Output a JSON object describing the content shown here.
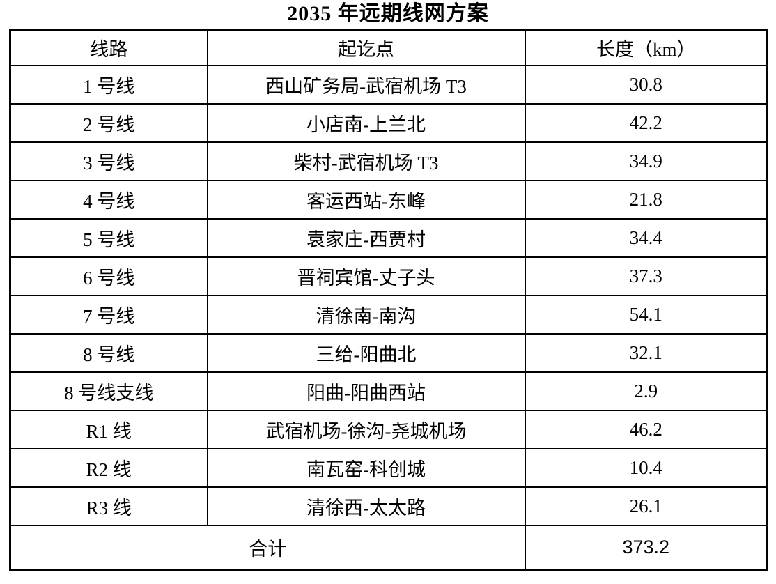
{
  "title": "2035 年远期线网方案",
  "table": {
    "headers": {
      "line": "线路",
      "route": "起讫点",
      "length": "长度（km）"
    },
    "rows": [
      {
        "line": "1 号线",
        "route": "西山矿务局-武宿机场 T3",
        "length": "30.8"
      },
      {
        "line": "2 号线",
        "route": "小店南-上兰北",
        "length": "42.2"
      },
      {
        "line": "3 号线",
        "route": "柴村-武宿机场 T3",
        "length": "34.9"
      },
      {
        "line": "4 号线",
        "route": "客运西站-东峰",
        "length": "21.8"
      },
      {
        "line": "5 号线",
        "route": "袁家庄-西贾村",
        "length": "34.4"
      },
      {
        "line": "6 号线",
        "route": "晋祠宾馆-丈子头",
        "length": "37.3"
      },
      {
        "line": "7 号线",
        "route": "清徐南-南沟",
        "length": "54.1"
      },
      {
        "line": "8 号线",
        "route": "三给-阳曲北",
        "length": "32.1"
      },
      {
        "line": "8 号线支线",
        "route": "阳曲-阳曲西站",
        "length": "2.9"
      },
      {
        "line": "R1 线",
        "route": "武宿机场-徐沟-尧城机场",
        "length": "46.2"
      },
      {
        "line": "R2 线",
        "route": "南瓦窑-科创城",
        "length": "10.4"
      },
      {
        "line": "R3 线",
        "route": "清徐西-太太路",
        "length": "26.1"
      }
    ],
    "total": {
      "label": "合计",
      "value": "373.2"
    }
  },
  "colors": {
    "text": "#000000",
    "border": "#000000",
    "background": "#ffffff"
  }
}
